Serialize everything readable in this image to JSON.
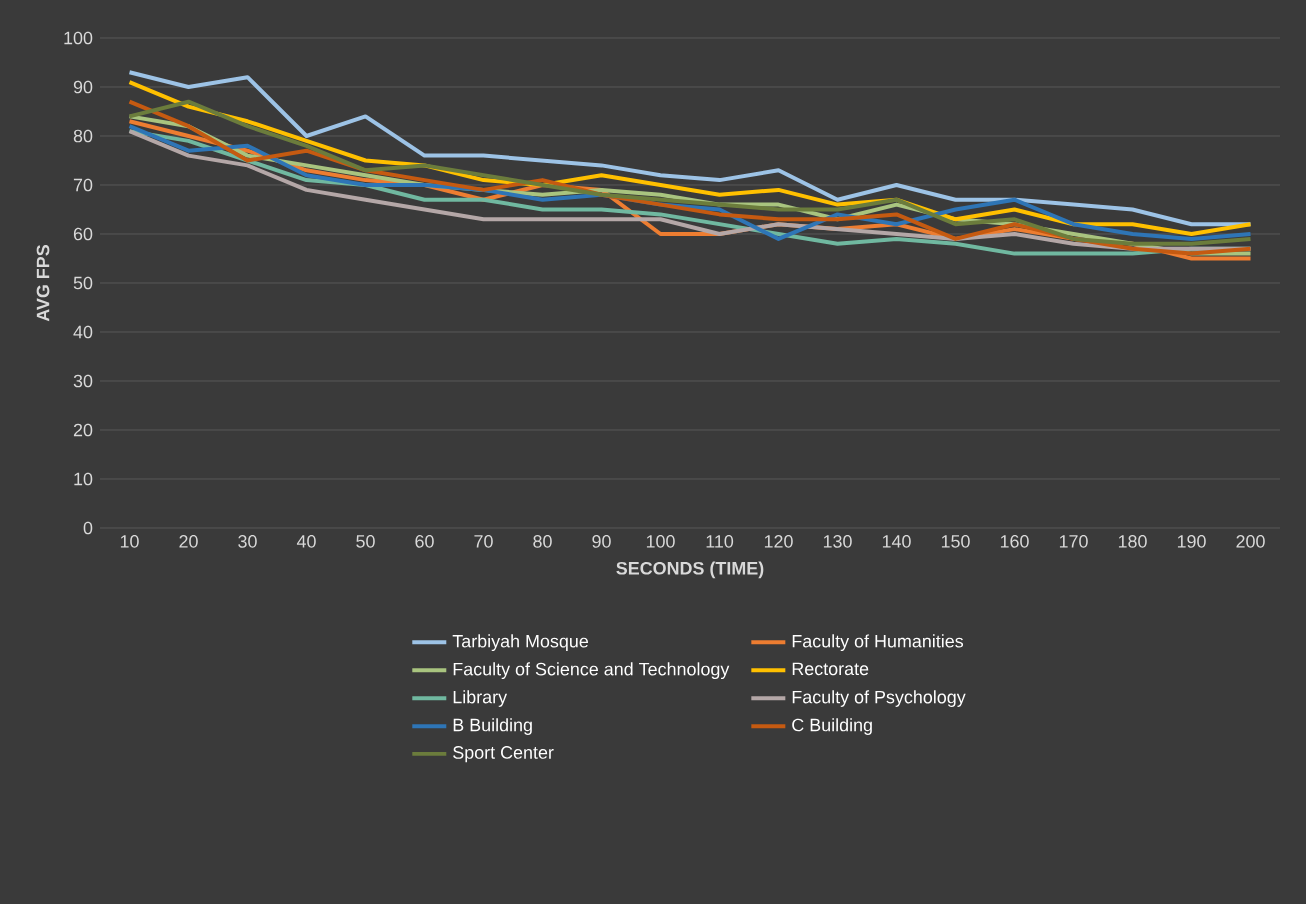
{
  "chart_data": {
    "type": "line",
    "xlabel": "SECONDS (TIME)",
    "ylabel": "AVG FPS",
    "categories": [
      "10",
      "20",
      "30",
      "40",
      "50",
      "60",
      "70",
      "80",
      "90",
      "100",
      "110",
      "120",
      "130",
      "140",
      "150",
      "160",
      "170",
      "180",
      "190",
      "200"
    ],
    "ylim": [
      0,
      100
    ],
    "yticks": [
      0,
      10,
      20,
      30,
      40,
      50,
      60,
      70,
      80,
      90,
      100
    ],
    "grid": "y",
    "legend": "bottom",
    "line_style": "solid",
    "marker": "none",
    "series": [
      {
        "name": "Tarbiyah Mosque",
        "color": "#9dc3e6",
        "values": [
          93,
          90,
          92,
          80,
          84,
          76,
          76,
          75,
          74,
          72,
          71,
          73,
          67,
          70,
          67,
          67,
          66,
          65,
          62,
          62
        ]
      },
      {
        "name": "Faculty of Humanities",
        "color": "#ed7d31",
        "values": [
          83,
          80,
          77,
          73,
          71,
          70,
          67,
          70,
          69,
          60,
          60,
          62,
          61,
          62,
          59,
          61,
          59,
          58,
          55,
          55
        ]
      },
      {
        "name": "Faculty of Science and Technology",
        "color": "#a9c47f",
        "values": [
          84,
          82,
          76,
          74,
          72,
          70,
          69,
          68,
          69,
          68,
          66,
          66,
          63,
          66,
          63,
          62,
          60,
          58,
          56,
          56
        ]
      },
      {
        "name": "Rectorate",
        "color": "#ffc000",
        "values": [
          91,
          86,
          83,
          79,
          75,
          74,
          71,
          70,
          72,
          70,
          68,
          69,
          66,
          67,
          63,
          65,
          62,
          62,
          60,
          62
        ]
      },
      {
        "name": "Library",
        "color": "#70b8a0",
        "values": [
          81,
          79,
          75,
          71,
          70,
          67,
          67,
          65,
          65,
          64,
          62,
          60,
          58,
          59,
          58,
          56,
          56,
          56,
          57,
          57
        ]
      },
      {
        "name": "Faculty of Psychology",
        "color": "#b4a7a7",
        "values": [
          81,
          76,
          74,
          69,
          67,
          65,
          63,
          63,
          63,
          63,
          60,
          62,
          61,
          60,
          59,
          60,
          58,
          57,
          57,
          57
        ]
      },
      {
        "name": "B Building",
        "color": "#2e75b6",
        "values": [
          82,
          77,
          78,
          72,
          70,
          70,
          69,
          67,
          68,
          66,
          65,
          59,
          64,
          62,
          65,
          67,
          62,
          60,
          59,
          60
        ]
      },
      {
        "name": "C Building",
        "color": "#c55a11",
        "values": [
          87,
          82,
          75,
          77,
          73,
          71,
          69,
          71,
          68,
          66,
          64,
          63,
          63,
          64,
          59,
          62,
          59,
          57,
          56,
          57
        ]
      },
      {
        "name": "Sport Center",
        "color": "#6b7c3c",
        "values": [
          84,
          87,
          82,
          78,
          73,
          74,
          72,
          70,
          68,
          67,
          66,
          65,
          65,
          67,
          62,
          63,
          59,
          58,
          58,
          59
        ]
      }
    ]
  }
}
